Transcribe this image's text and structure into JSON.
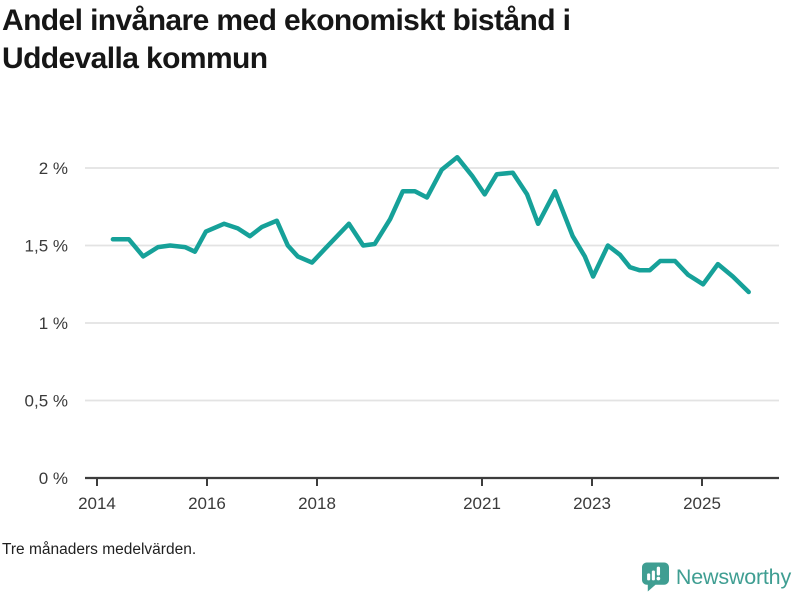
{
  "title": {
    "line1": "Andel invånare med ekonomiskt bistånd i",
    "line2": "Uddevalla kommun"
  },
  "footnote": "Tre månaders medelvärden.",
  "logo": {
    "text": "Newsworthy",
    "color": "#3f9e92",
    "icon": "newsworthy-speech-bubble-bar-chart-icon"
  },
  "colors": {
    "line": "#16a199",
    "grid": "#e3e3e3",
    "axis": "#3d3d3d",
    "axis_text": "#3a3a3a",
    "title_text": "#161616"
  },
  "chart_data": {
    "type": "line",
    "title": "Andel invånare med ekonomiskt bistånd i Uddevalla kommun",
    "note": "Tre månaders medelvärden.",
    "unit": "%",
    "grid": "horizontal",
    "legend": "none",
    "x_range": [
      2013.782,
      2026.4
    ],
    "y_range": [
      0,
      2.2
    ],
    "y_ticks": [
      {
        "label": "0 %",
        "value": 0
      },
      {
        "label": "0,5 %",
        "value": 0.5
      },
      {
        "label": "1 %",
        "value": 1
      },
      {
        "label": "1,5 %",
        "value": 1.5
      },
      {
        "label": "2 %",
        "value": 2
      }
    ],
    "x_ticks": [
      {
        "label": "2014",
        "year": 2014
      },
      {
        "label": "2016",
        "year": 2016
      },
      {
        "label": "2018",
        "year": 2018
      },
      {
        "label": "2021",
        "year": 2021
      },
      {
        "label": "2023",
        "year": 2023
      },
      {
        "label": "2025",
        "year": 2025
      }
    ],
    "series": [
      {
        "name": "Uddevalla kommun",
        "points": [
          [
            2014.29,
            1.54
          ],
          [
            2014.58,
            1.54
          ],
          [
            2014.84,
            1.43
          ],
          [
            2015.11,
            1.49
          ],
          [
            2015.33,
            1.5
          ],
          [
            2015.6,
            1.49
          ],
          [
            2015.78,
            1.46
          ],
          [
            2015.98,
            1.59
          ],
          [
            2016.31,
            1.64
          ],
          [
            2016.56,
            1.61
          ],
          [
            2016.78,
            1.56
          ],
          [
            2017.0,
            1.62
          ],
          [
            2017.27,
            1.66
          ],
          [
            2017.47,
            1.5
          ],
          [
            2017.65,
            1.43
          ],
          [
            2017.91,
            1.39
          ],
          [
            2018.15,
            1.48
          ],
          [
            2018.58,
            1.64
          ],
          [
            2018.84,
            1.5
          ],
          [
            2019.05,
            1.51
          ],
          [
            2019.33,
            1.67
          ],
          [
            2019.56,
            1.85
          ],
          [
            2019.78,
            1.85
          ],
          [
            2020.0,
            1.81
          ],
          [
            2020.27,
            1.99
          ],
          [
            2020.55,
            2.07
          ],
          [
            2020.82,
            1.95
          ],
          [
            2021.05,
            1.83
          ],
          [
            2021.27,
            1.96
          ],
          [
            2021.56,
            1.97
          ],
          [
            2021.82,
            1.83
          ],
          [
            2022.02,
            1.64
          ],
          [
            2022.33,
            1.85
          ],
          [
            2022.65,
            1.56
          ],
          [
            2022.87,
            1.43
          ],
          [
            2023.02,
            1.3
          ],
          [
            2023.29,
            1.5
          ],
          [
            2023.51,
            1.44
          ],
          [
            2023.69,
            1.36
          ],
          [
            2023.87,
            1.34
          ],
          [
            2024.05,
            1.34
          ],
          [
            2024.24,
            1.4
          ],
          [
            2024.51,
            1.4
          ],
          [
            2024.75,
            1.31
          ],
          [
            2025.02,
            1.25
          ],
          [
            2025.29,
            1.38
          ],
          [
            2025.56,
            1.3
          ],
          [
            2025.85,
            1.2
          ]
        ]
      }
    ]
  }
}
